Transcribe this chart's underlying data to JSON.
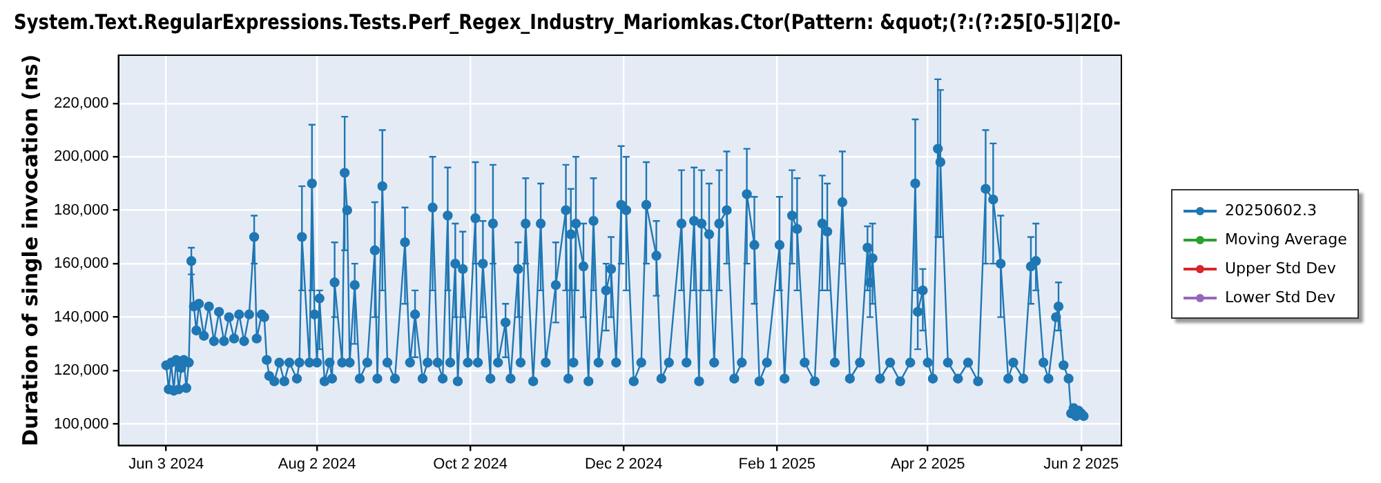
{
  "chart_data": {
    "type": "line",
    "title": "System.Text.RegularExpressions.Tests.Perf_Regex_Industry_Mariomkas.Ctor(Pattern: &quot;(?:(?:25[0-5]|2[0-",
    "ylabel": "Duration of single invocation (ns)",
    "xlim": [
      "2024-05-15",
      "2025-06-18"
    ],
    "xticks": [
      {
        "value": "2024-06-03",
        "label": "Jun 3 2024"
      },
      {
        "value": "2024-08-02",
        "label": "Aug 2 2024"
      },
      {
        "value": "2024-10-02",
        "label": "Oct 2 2024"
      },
      {
        "value": "2024-12-02",
        "label": "Dec 2 2024"
      },
      {
        "value": "2025-02-01",
        "label": "Feb 1 2025"
      },
      {
        "value": "2025-04-02",
        "label": "Apr 2 2025"
      },
      {
        "value": "2025-06-02",
        "label": "Jun 2 2025"
      }
    ],
    "ylim": [
      92000,
      238000
    ],
    "yticks": [
      {
        "value": 100000,
        "label": "100,000"
      },
      {
        "value": 120000,
        "label": "120,000"
      },
      {
        "value": 140000,
        "label": "140,000"
      },
      {
        "value": 160000,
        "label": "160,000"
      },
      {
        "value": 180000,
        "label": "180,000"
      },
      {
        "value": 200000,
        "label": "200,000"
      },
      {
        "value": 220000,
        "label": "220,000"
      }
    ],
    "grid": true,
    "legend": "right",
    "marker": "circle",
    "line_style": "solid",
    "series": [
      {
        "name": "20250602.3",
        "color": "#1f77b4",
        "x": [
          "2024-06-03",
          "2024-06-04",
          "2024-06-05",
          "2024-06-06",
          "2024-06-07",
          "2024-06-08",
          "2024-06-09",
          "2024-06-10",
          "2024-06-11",
          "2024-06-12",
          "2024-06-13",
          "2024-06-14",
          "2024-06-15",
          "2024-06-16",
          "2024-06-18",
          "2024-06-20",
          "2024-06-22",
          "2024-06-24",
          "2024-06-26",
          "2024-06-28",
          "2024-06-30",
          "2024-07-02",
          "2024-07-04",
          "2024-07-06",
          "2024-07-08",
          "2024-07-09",
          "2024-07-11",
          "2024-07-12",
          "2024-07-13",
          "2024-07-14",
          "2024-07-16",
          "2024-07-18",
          "2024-07-20",
          "2024-07-22",
          "2024-07-25",
          "2024-07-26",
          "2024-07-27",
          "2024-07-30",
          "2024-07-31",
          "2024-08-01",
          "2024-08-02",
          "2024-08-03",
          "2024-08-05",
          "2024-08-07",
          "2024-08-08",
          "2024-08-09",
          "2024-08-12",
          "2024-08-13",
          "2024-08-14",
          "2024-08-15",
          "2024-08-17",
          "2024-08-19",
          "2024-08-22",
          "2024-08-25",
          "2024-08-26",
          "2024-08-28",
          "2024-08-30",
          "2024-09-02",
          "2024-09-06",
          "2024-09-08",
          "2024-09-10",
          "2024-09-13",
          "2024-09-15",
          "2024-09-17",
          "2024-09-19",
          "2024-09-21",
          "2024-09-23",
          "2024-09-24",
          "2024-09-26",
          "2024-09-27",
          "2024-09-29",
          "2024-10-01",
          "2024-10-04",
          "2024-10-05",
          "2024-10-07",
          "2024-10-10",
          "2024-10-11",
          "2024-10-13",
          "2024-10-16",
          "2024-10-18",
          "2024-10-21",
          "2024-10-22",
          "2024-10-24",
          "2024-10-27",
          "2024-10-30",
          "2024-11-01",
          "2024-11-05",
          "2024-11-09",
          "2024-11-10",
          "2024-11-11",
          "2024-11-12",
          "2024-11-13",
          "2024-11-16",
          "2024-11-18",
          "2024-11-20",
          "2024-11-22",
          "2024-11-25",
          "2024-11-27",
          "2024-11-29",
          "2024-12-01",
          "2024-12-03",
          "2024-12-06",
          "2024-12-09",
          "2024-12-11",
          "2024-12-15",
          "2024-12-17",
          "2024-12-20",
          "2024-12-25",
          "2024-12-27",
          "2024-12-30",
          "2025-01-01",
          "2025-01-02",
          "2025-01-05",
          "2025-01-07",
          "2025-01-09",
          "2025-01-12",
          "2025-01-15",
          "2025-01-18",
          "2025-01-20",
          "2025-01-23",
          "2025-01-25",
          "2025-01-28",
          "2025-02-02",
          "2025-02-04",
          "2025-02-07",
          "2025-02-09",
          "2025-02-12",
          "2025-02-16",
          "2025-02-19",
          "2025-02-21",
          "2025-02-24",
          "2025-02-27",
          "2025-03-02",
          "2025-03-06",
          "2025-03-09",
          "2025-03-10",
          "2025-03-11",
          "2025-03-14",
          "2025-03-18",
          "2025-03-22",
          "2025-03-26",
          "2025-03-28",
          "2025-03-29",
          "2025-03-31",
          "2025-04-02",
          "2025-04-04",
          "2025-04-06",
          "2025-04-07",
          "2025-04-10",
          "2025-04-14",
          "2025-04-18",
          "2025-04-22",
          "2025-04-25",
          "2025-04-28",
          "2025-05-01",
          "2025-05-04",
          "2025-05-06",
          "2025-05-10",
          "2025-05-13",
          "2025-05-15",
          "2025-05-18",
          "2025-05-20",
          "2025-05-23",
          "2025-05-24",
          "2025-05-26",
          "2025-05-28",
          "2025-05-29",
          "2025-05-30",
          "2025-05-31",
          "2025-06-01",
          "2025-06-02",
          "2025-06-03"
        ],
        "values": [
          122000,
          113000,
          123000,
          112500,
          124000,
          113000,
          121000,
          124000,
          113500,
          123000,
          161000,
          144000,
          135000,
          145000,
          133000,
          144000,
          131000,
          142000,
          131000,
          140000,
          132000,
          141000,
          131000,
          141000,
          170000,
          132000,
          141000,
          140000,
          124000,
          118000,
          116000,
          123000,
          116000,
          123000,
          117000,
          123000,
          170000,
          123000,
          190000,
          141000,
          123000,
          147000,
          116000,
          123000,
          117000,
          153000,
          123000,
          194000,
          180000,
          123000,
          152000,
          117000,
          123000,
          165000,
          117000,
          189000,
          123000,
          117000,
          168000,
          123000,
          141000,
          117000,
          123000,
          181000,
          123000,
          117000,
          178000,
          123000,
          160000,
          116000,
          158000,
          123000,
          177000,
          123000,
          160000,
          117000,
          175000,
          123000,
          138000,
          117000,
          158000,
          123000,
          175000,
          116000,
          175000,
          123000,
          152000,
          180000,
          117000,
          171000,
          123000,
          175000,
          159000,
          116000,
          176000,
          123000,
          150000,
          158000,
          123000,
          182000,
          180000,
          116000,
          123000,
          182000,
          163000,
          117000,
          123000,
          175000,
          123000,
          176000,
          116000,
          175000,
          171000,
          123000,
          175000,
          180000,
          117000,
          123000,
          186000,
          167000,
          116000,
          123000,
          167000,
          117000,
          178000,
          173000,
          123000,
          116000,
          175000,
          172000,
          123000,
          183000,
          117000,
          123000,
          166000,
          153000,
          162000,
          117000,
          123000,
          116000,
          123000,
          190000,
          142000,
          150000,
          123000,
          117000,
          203000,
          198000,
          123000,
          117000,
          123000,
          116000,
          188000,
          184000,
          160000,
          117000,
          123000,
          117000,
          159000,
          161000,
          123000,
          117000,
          140000,
          144000,
          122000,
          117000,
          104000,
          106000,
          103000,
          105000,
          104000,
          103000
        ],
        "errors": [
          null,
          null,
          null,
          null,
          null,
          null,
          null,
          null,
          null,
          null,
          [
            156000,
            166000
          ],
          null,
          null,
          null,
          null,
          null,
          null,
          null,
          null,
          null,
          null,
          null,
          null,
          null,
          [
            160000,
            178000
          ],
          null,
          null,
          null,
          null,
          null,
          null,
          null,
          null,
          null,
          null,
          null,
          [
            150000,
            189000
          ],
          null,
          [
            150000,
            212000
          ],
          null,
          null,
          [
            128000,
            150000
          ],
          null,
          null,
          null,
          [
            140000,
            168000
          ],
          null,
          [
            165000,
            215000
          ],
          null,
          null,
          [
            130000,
            160000
          ],
          null,
          null,
          [
            140000,
            183000
          ],
          null,
          [
            150000,
            210000
          ],
          null,
          null,
          [
            145000,
            181000
          ],
          null,
          [
            125000,
            150000
          ],
          null,
          null,
          [
            150000,
            200000
          ],
          null,
          null,
          [
            150000,
            196000
          ],
          null,
          [
            140000,
            175000
          ],
          null,
          [
            140000,
            172000
          ],
          null,
          [
            160000,
            198000
          ],
          null,
          [
            140000,
            176000
          ],
          null,
          [
            160000,
            197000
          ],
          null,
          [
            125000,
            145000
          ],
          null,
          [
            140000,
            168000
          ],
          null,
          [
            160000,
            192000
          ],
          null,
          [
            150000,
            190000
          ],
          null,
          [
            138000,
            168000
          ],
          [
            150000,
            197000
          ],
          null,
          [
            150000,
            188000
          ],
          null,
          [
            150000,
            200000
          ],
          [
            140000,
            175000
          ],
          null,
          [
            150000,
            192000
          ],
          null,
          [
            135000,
            160000
          ],
          [
            140000,
            170000
          ],
          null,
          [
            160000,
            204000
          ],
          [
            150000,
            200000
          ],
          null,
          null,
          [
            160000,
            198000
          ],
          [
            148000,
            176000
          ],
          null,
          null,
          [
            150000,
            195000
          ],
          null,
          [
            150000,
            196000
          ],
          null,
          [
            150000,
            195000
          ],
          [
            150000,
            190000
          ],
          null,
          [
            150000,
            195000
          ],
          [
            160000,
            202000
          ],
          null,
          null,
          [
            160000,
            203000
          ],
          [
            145000,
            185000
          ],
          null,
          null,
          [
            150000,
            185000
          ],
          null,
          [
            160000,
            195000
          ],
          [
            150000,
            192000
          ],
          null,
          null,
          [
            150000,
            193000
          ],
          [
            150000,
            190000
          ],
          null,
          [
            160000,
            202000
          ],
          null,
          null,
          [
            150000,
            174000
          ],
          [
            140000,
            165000
          ],
          [
            145000,
            175000
          ],
          null,
          null,
          null,
          null,
          [
            150000,
            214000
          ],
          [
            128000,
            150000
          ],
          [
            135000,
            158000
          ],
          null,
          null,
          [
            170000,
            229000
          ],
          [
            170000,
            225000
          ],
          null,
          null,
          null,
          null,
          [
            160000,
            210000
          ],
          [
            160000,
            205000
          ],
          [
            140000,
            178000
          ],
          null,
          null,
          null,
          [
            145000,
            170000
          ],
          [
            150000,
            175000
          ],
          null,
          null,
          null,
          [
            135000,
            153000
          ],
          null,
          null,
          null,
          null,
          null,
          null,
          null,
          null
        ]
      },
      {
        "name": "Moving Average",
        "color": "#2ca02c"
      },
      {
        "name": "Upper Std Dev",
        "color": "#d62728"
      },
      {
        "name": "Lower Std Dev",
        "color": "#9467bd"
      }
    ]
  }
}
